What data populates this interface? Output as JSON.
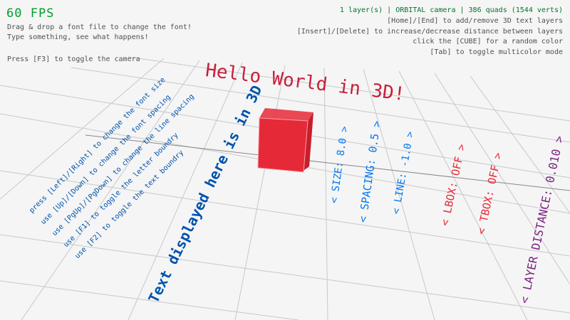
{
  "hud": {
    "fps": "60 FPS",
    "left_lines": [
      "Drag & drop a font file to change the font!",
      "Type something, see what happens!",
      "Press [F3] to toggle the camera"
    ],
    "status": "1 layer(s) | ORBITAL camera |  386 quads (1544 verts)",
    "right_lines": [
      "[Home]/[End] to add/remove 3D text layers",
      "[Insert]/[Delete] to increase/decrease distance between layers",
      "click the [CUBE] for a random color",
      "[Tab] to toggle multicolor mode"
    ]
  },
  "scene": {
    "title_text": "Hello World in 3D!",
    "big_text": "Text displayed here is in 3D",
    "instructions": [
      "press [Left]/[Right] to change the font size",
      "use [Up]/[Down] to change the font spacing",
      "use [PgUp]/[PgDown] to change the line spacing",
      "use [F1] to toggle the letter boundry",
      "use [F2] to toggle the text boundry"
    ],
    "settings": [
      {
        "label": "< SIZE: 8.0 >",
        "color": "#0079f1"
      },
      {
        "label": "< SPACING: 0.5 >",
        "color": "#0079f1"
      },
      {
        "label": "< LINE: -1.0 >",
        "color": "#0079f1"
      },
      {
        "label": "< LBOX: OFF >",
        "color": "#e62937"
      },
      {
        "label": "< TBOX: OFF >",
        "color": "#e62937"
      },
      {
        "label": "< LAYER DISTANCE: 0.010 >",
        "color": "#7b237f"
      }
    ],
    "cube_color": "#e62937",
    "text_color": "#0052ac"
  }
}
